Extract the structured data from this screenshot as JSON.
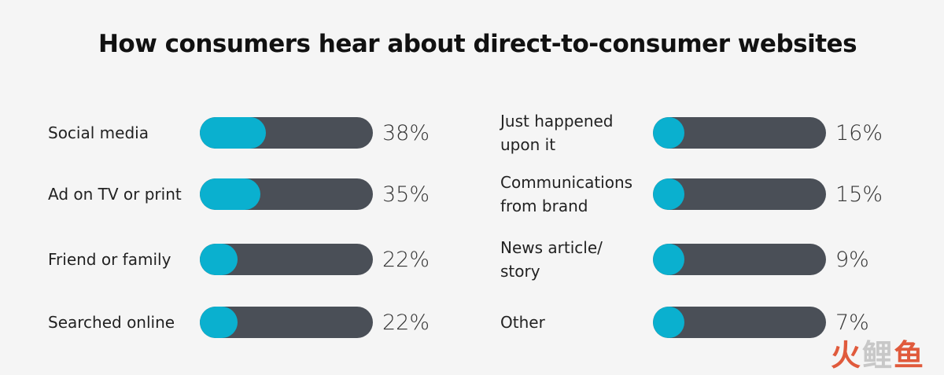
{
  "chart_data": {
    "type": "bar",
    "title": "How consumers hear about direct-to-consumer websites",
    "xlim": [
      0,
      100
    ],
    "colors": {
      "fill": "#0ab0cf",
      "track": "#4a4f57"
    },
    "categories": [
      "Social media",
      "Ad on TV or print",
      "Friend or family",
      "Searched online",
      "Just happened\nupon it",
      "Communications\nfrom brand",
      "News article/\nstory",
      "Other"
    ],
    "values": [
      38,
      35,
      22,
      22,
      16,
      15,
      9,
      7
    ],
    "value_labels": [
      "38%",
      "35%",
      "22%",
      "22%",
      "16%",
      "15%",
      "9%",
      "7%"
    ]
  },
  "watermark": "火鲤鱼"
}
